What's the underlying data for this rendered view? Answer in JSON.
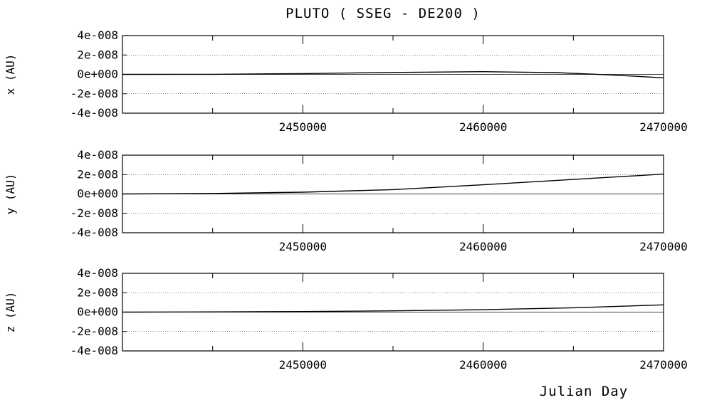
{
  "figure": {
    "title": "PLUTO ( SSEG - DE200 )",
    "xlabel": "Julian Day"
  },
  "chart_data": [
    {
      "type": "line",
      "ylabel": "x (AU)",
      "xlim": [
        2440000,
        2470000
      ],
      "ylim": [
        -4e-08,
        4e-08
      ],
      "xticks": [
        2450000,
        2460000,
        2470000
      ],
      "xtick_labels": [
        "2450000",
        "2460000",
        "2470000"
      ],
      "yticks": [
        4e-08,
        2e-08,
        0,
        -2e-08,
        -4e-08
      ],
      "ytick_labels": [
        "4e-008",
        "2e-008",
        "0e+000",
        "-2e-008",
        "-4e-008"
      ],
      "grid": true,
      "series": [
        {
          "x": [
            2440000,
            2445000,
            2450000,
            2455000,
            2460000,
            2464000,
            2467000,
            2470000
          ],
          "y": [
            0,
            1e-10,
            8e-10,
            2e-09,
            2.8e-09,
            1.8e-09,
            -5e-10,
            -3.5e-09
          ]
        }
      ]
    },
    {
      "type": "line",
      "ylabel": "y (AU)",
      "xlim": [
        2440000,
        2470000
      ],
      "ylim": [
        -4e-08,
        4e-08
      ],
      "xticks": [
        2450000,
        2460000,
        2470000
      ],
      "xtick_labels": [
        "2450000",
        "2460000",
        "2470000"
      ],
      "yticks": [
        4e-08,
        2e-08,
        0,
        -2e-08,
        -4e-08
      ],
      "ytick_labels": [
        "4e-008",
        "2e-008",
        "0e+000",
        "-2e-008",
        "-4e-008"
      ],
      "grid": true,
      "series": [
        {
          "x": [
            2440000,
            2445000,
            2450000,
            2455000,
            2460000,
            2465000,
            2470000
          ],
          "y": [
            0,
            5e-10,
            1.8e-09,
            4.5e-09,
            9.5e-09,
            1.5e-08,
            2.05e-08
          ]
        }
      ]
    },
    {
      "type": "line",
      "ylabel": "z (AU)",
      "xlim": [
        2440000,
        2470000
      ],
      "ylim": [
        -4e-08,
        4e-08
      ],
      "xticks": [
        2450000,
        2460000,
        2470000
      ],
      "xtick_labels": [
        "2450000",
        "2460000",
        "2470000"
      ],
      "yticks": [
        4e-08,
        2e-08,
        0,
        -2e-08,
        -4e-08
      ],
      "ytick_labels": [
        "4e-008",
        "2e-008",
        "0e+000",
        "-2e-008",
        "-4e-008"
      ],
      "grid": true,
      "series": [
        {
          "x": [
            2440000,
            2445000,
            2450000,
            2455000,
            2460000,
            2465000,
            2470000
          ],
          "y": [
            0,
            2e-10,
            6e-10,
            1.3e-09,
            2.5e-09,
            4.5e-09,
            7.5e-09
          ]
        }
      ]
    }
  ]
}
